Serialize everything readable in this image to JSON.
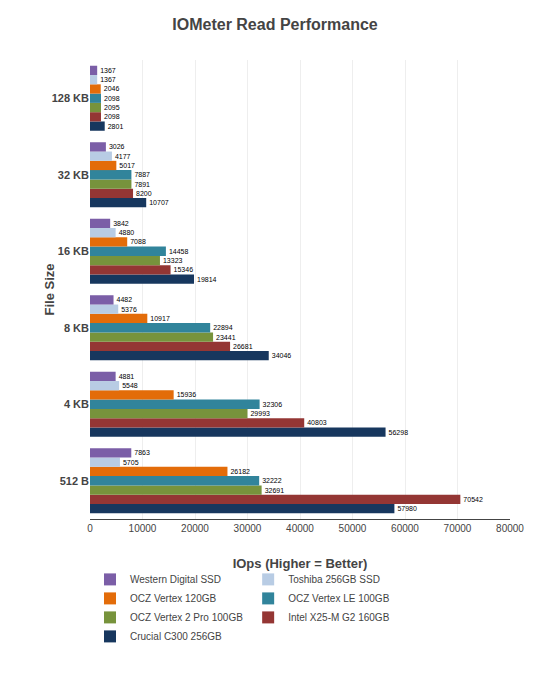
{
  "chart_data": {
    "type": "bar",
    "orientation": "horizontal",
    "title": "IOMeter Read Performance",
    "xlabel": "IOps (Higher = Better)",
    "ylabel": "File Size",
    "categories": [
      "512 B",
      "4 KB",
      "8 KB",
      "16 KB",
      "32 KB",
      "128 KB"
    ],
    "series": [
      {
        "name": "Western Digital SSD",
        "color": "#7B5EA7",
        "values": [
          7863,
          4881,
          4482,
          3842,
          3026,
          1367
        ]
      },
      {
        "name": "Toshiba 256GB SSD",
        "color": "#B8CCE4",
        "values": [
          5705,
          5548,
          5376,
          4880,
          4177,
          1367
        ]
      },
      {
        "name": "OCZ Vertex 120GB",
        "color": "#E36C09",
        "values": [
          26182,
          15936,
          10917,
          7088,
          5017,
          2046
        ]
      },
      {
        "name": "OCZ Vertex LE 100GB",
        "color": "#31849B",
        "values": [
          32222,
          32306,
          22894,
          14458,
          7887,
          2098
        ]
      },
      {
        "name": "OCZ Vertex 2 Pro 100GB",
        "color": "#77933C",
        "values": [
          32691,
          29993,
          23441,
          13323,
          7891,
          2095
        ]
      },
      {
        "name": "Intel X25-M G2 160GB",
        "color": "#943634",
        "values": [
          70542,
          40803,
          26681,
          15346,
          8200,
          2098
        ]
      },
      {
        "name": "Crucial C300 256GB",
        "color": "#17375E",
        "values": [
          57980,
          56298,
          34046,
          19814,
          10707,
          2801
        ]
      }
    ],
    "xlim": [
      0,
      80000
    ],
    "xticks": [
      0,
      10000,
      20000,
      30000,
      40000,
      50000,
      60000,
      70000,
      80000
    ],
    "grid": true,
    "legend": "bottom",
    "data_labels": true
  }
}
